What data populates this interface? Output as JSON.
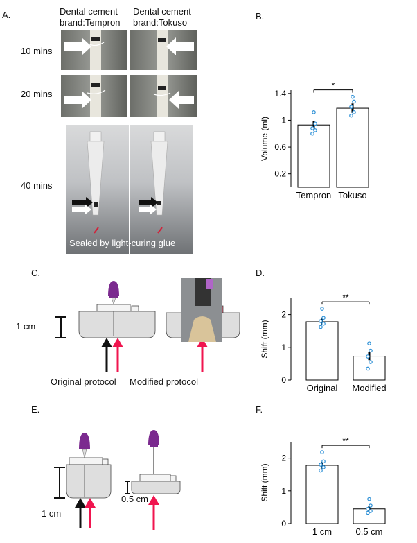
{
  "panel_letters": {
    "a": "A.",
    "b": "B.",
    "c": "C.",
    "d": "D.",
    "e": "E.",
    "f": "F."
  },
  "panel_a": {
    "col1_line1": "Dental cement",
    "col1_line2": "brand:Tempron",
    "col2_line1": "Dental cement",
    "col2_line2": "brand:Tokuso",
    "row1": "10 mins",
    "row2": "20 mins",
    "row3": "40 mins",
    "caption": "Sealed by light-curing glue"
  },
  "panel_c": {
    "scale": "1 cm",
    "label_left": "Original protocol",
    "label_right": "Modified protocol"
  },
  "panel_e": {
    "scale_left": "1  cm",
    "scale_right": "0.5 cm"
  },
  "colors": {
    "bar_edge": "#000000",
    "point": "#2b8fd6",
    "arrow_red": "#f0154f",
    "arrow_black": "#111111",
    "needle": "#7b2a8f",
    "glue": "#e05c72"
  },
  "chart_data": [
    {
      "id": "B",
      "type": "bar",
      "categories": [
        "Tempron",
        "Tokuso"
      ],
      "values": [
        0.93,
        1.18
      ],
      "errors": [
        0.06,
        0.07
      ],
      "points": [
        [
          1.12,
          0.95,
          0.88,
          0.85,
          0.8
        ],
        [
          1.35,
          1.28,
          1.2,
          1.12,
          1.07
        ]
      ],
      "ylabel": "Volume (ml)",
      "ylim": [
        0,
        1.45
      ],
      "yticks": [
        0.2,
        0.6,
        1,
        1.4
      ],
      "significance": "*"
    },
    {
      "id": "D",
      "type": "bar",
      "categories": [
        "Original",
        "Modified"
      ],
      "values": [
        1.78,
        0.73
      ],
      "errors": [
        0.1,
        0.12
      ],
      "points": [
        [
          2.18,
          1.9,
          1.8,
          1.72,
          1.62
        ],
        [
          1.12,
          0.9,
          0.72,
          0.55,
          0.35
        ]
      ],
      "ylabel": "Shift (mm)",
      "ylim": [
        0,
        2.5
      ],
      "yticks": [
        0,
        1,
        2
      ],
      "significance": "**"
    },
    {
      "id": "F",
      "type": "bar",
      "categories": [
        "1 cm",
        "0.5 cm"
      ],
      "values": [
        1.78,
        0.45
      ],
      "errors": [
        0.1,
        0.08
      ],
      "points": [
        [
          2.18,
          1.9,
          1.8,
          1.72,
          1.62
        ],
        [
          0.75,
          0.55,
          0.45,
          0.38,
          0.33
        ]
      ],
      "ylabel": "Shift (mm)",
      "ylim": [
        0,
        2.5
      ],
      "yticks": [
        0,
        1,
        2
      ],
      "significance": "**"
    }
  ]
}
